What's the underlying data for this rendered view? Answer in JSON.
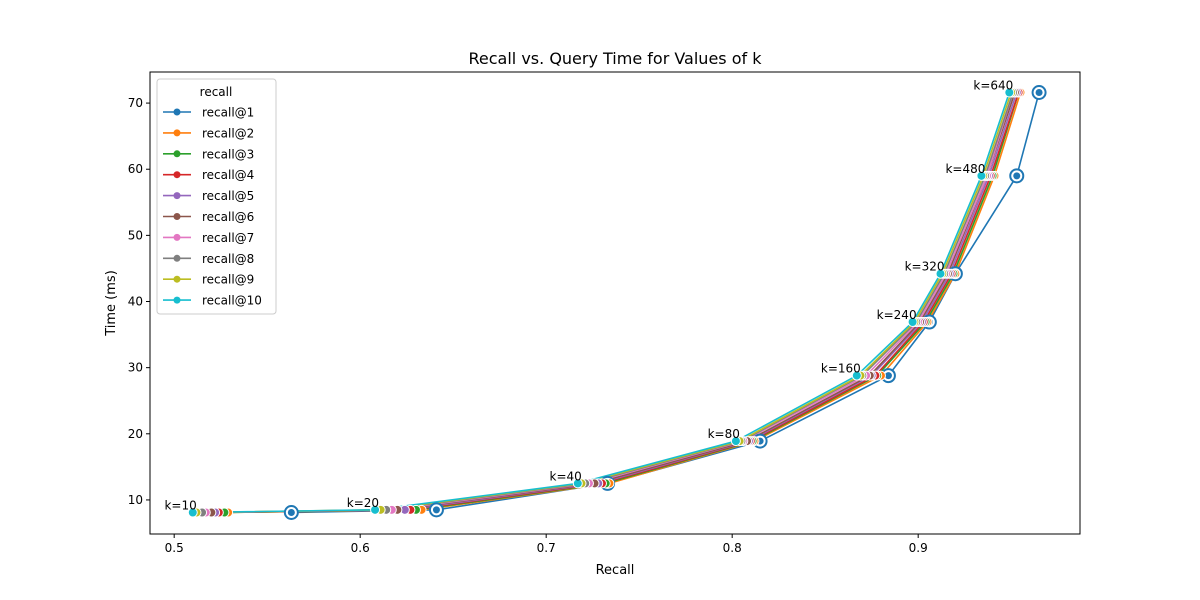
{
  "chart_data": {
    "type": "line",
    "title": "Recall vs. Query Time for Values of k",
    "xlabel": "Recall",
    "ylabel": "Time (ms)",
    "xlim": [
      0.487,
      0.987
    ],
    "ylim": [
      4.85,
      74.7
    ],
    "xticks": [
      0.5,
      0.6,
      0.7,
      0.8,
      0.9
    ],
    "xtick_labels": [
      "0.5",
      "0.6",
      "0.7",
      "0.8",
      "0.9"
    ],
    "yticks": [
      10,
      20,
      30,
      40,
      50,
      60,
      70
    ],
    "ytick_labels": [
      "10",
      "20",
      "30",
      "40",
      "50",
      "60",
      "70"
    ],
    "grid": false,
    "legend": {
      "title": "recall",
      "placement": "top-left"
    },
    "k_labels": [
      "k=10",
      "k=20",
      "k=40",
      "k=80",
      "k=160",
      "k=240",
      "k=320",
      "k=480",
      "k=640"
    ],
    "time_ms": [
      8.1,
      8.5,
      12.5,
      18.9,
      28.8,
      36.9,
      44.2,
      59.0,
      71.6
    ],
    "series": [
      {
        "name": "recall@1",
        "color": "#1f77b4",
        "values": [
          0.563,
          0.641,
          0.733,
          0.815,
          0.884,
          0.906,
          0.92,
          0.953,
          0.965
        ]
      },
      {
        "name": "recall@2",
        "color": "#ff7f0e",
        "values": [
          0.529,
          0.633,
          0.734,
          0.812,
          0.88,
          0.905,
          0.92,
          0.941,
          0.955
        ]
      },
      {
        "name": "recall@3",
        "color": "#2ca02c",
        "values": [
          0.527,
          0.63,
          0.732,
          0.811,
          0.878,
          0.904,
          0.919,
          0.94,
          0.954
        ]
      },
      {
        "name": "recall@4",
        "color": "#d62728",
        "values": [
          0.524,
          0.627,
          0.73,
          0.81,
          0.877,
          0.903,
          0.918,
          0.939,
          0.954
        ]
      },
      {
        "name": "recall@5",
        "color": "#9467bd",
        "values": [
          0.522,
          0.624,
          0.728,
          0.809,
          0.875,
          0.902,
          0.917,
          0.938,
          0.953
        ]
      },
      {
        "name": "recall@6",
        "color": "#8c564b",
        "values": [
          0.52,
          0.62,
          0.726,
          0.808,
          0.874,
          0.901,
          0.916,
          0.937,
          0.952
        ]
      },
      {
        "name": "recall@7",
        "color": "#e377c2",
        "values": [
          0.517,
          0.617,
          0.723,
          0.806,
          0.872,
          0.9,
          0.915,
          0.937,
          0.951
        ]
      },
      {
        "name": "recall@8",
        "color": "#7f7f7f",
        "values": [
          0.515,
          0.614,
          0.721,
          0.805,
          0.87,
          0.899,
          0.914,
          0.936,
          0.951
        ]
      },
      {
        "name": "recall@9",
        "color": "#bcbd22",
        "values": [
          0.512,
          0.611,
          0.719,
          0.804,
          0.869,
          0.898,
          0.913,
          0.935,
          0.95
        ]
      },
      {
        "name": "recall@10",
        "color": "#17becf",
        "values": [
          0.51,
          0.608,
          0.717,
          0.802,
          0.867,
          0.897,
          0.912,
          0.934,
          0.949
        ]
      }
    ]
  }
}
